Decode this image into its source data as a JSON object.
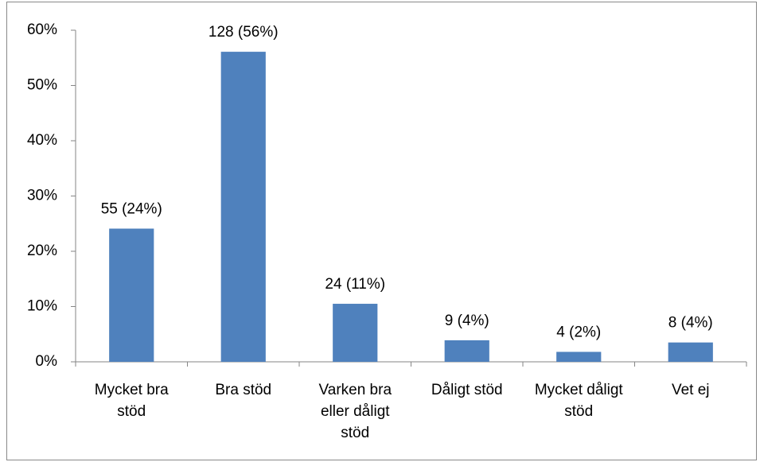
{
  "chart_data": {
    "type": "bar",
    "categories": [
      "Mycket bra stöd",
      "Bra stöd",
      "Varken bra eller dåligt stöd",
      "Dåligt stöd",
      "Mycket dåligt stöd",
      "Vet ej"
    ],
    "values": [
      24.1,
      56.1,
      10.5,
      3.9,
      1.8,
      3.5
    ],
    "value_labels": [
      "55 (24%)",
      "128 (56%)",
      "24 (11%)",
      "9 (4%)",
      "4 (2%)",
      "8 (4%)"
    ],
    "color": "#4f81bd",
    "ylim": [
      0,
      60
    ],
    "yticks": [
      {
        "value": 0,
        "label": "0%"
      },
      {
        "value": 10,
        "label": "10%"
      },
      {
        "value": 20,
        "label": "20%"
      },
      {
        "value": 30,
        "label": "30%"
      },
      {
        "value": 40,
        "label": "40%"
      },
      {
        "value": 50,
        "label": "50%"
      },
      {
        "value": 60,
        "label": "60%"
      }
    ],
    "grid": false
  }
}
